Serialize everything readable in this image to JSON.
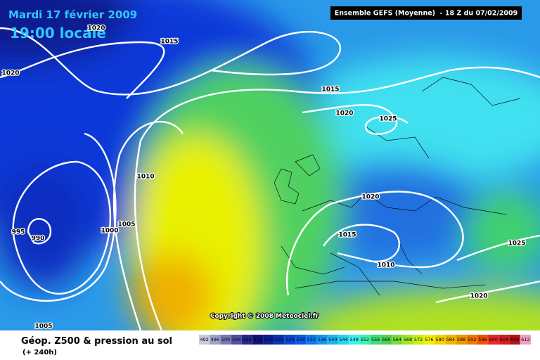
{
  "header": {
    "date": "Mardi 17 février 2009",
    "time": "19:00 locale",
    "run": "Ensemble GEFS (Moyenne)  - 18 Z du 07/02/2009"
  },
  "isobars": [
    "1020",
    "1015",
    "1020",
    "1015",
    "1020",
    "1025",
    "1010",
    "1020",
    "995",
    "990",
    "1000",
    "1005",
    "1015",
    "1010",
    "1025",
    "1020",
    "1005"
  ],
  "copyright": "Copyright © 2008 Meteociel.fr",
  "footer": {
    "title": "Géop. Z500 & pression au sol",
    "lead": "(+ 240h)"
  },
  "legend": {
    "values": [
      492,
      496,
      500,
      504,
      508,
      512,
      516,
      520,
      524,
      528,
      532,
      536,
      540,
      544,
      548,
      552,
      556,
      560,
      564,
      568,
      572,
      576,
      580,
      584,
      588,
      592,
      596,
      600,
      604,
      608,
      612
    ],
    "colors": [
      "#c8c8dc",
      "#a0a0c8",
      "#7878b4",
      "#5050a0",
      "#28288c",
      "#101478",
      "#0a1e96",
      "#0a32b4",
      "#0a46d2",
      "#0a5ae6",
      "#0a78f0",
      "#1496f0",
      "#1eb4f0",
      "#28d2f0",
      "#3cf0f0",
      "#3cf0b4",
      "#3cdc78",
      "#50d050",
      "#78dc3c",
      "#a0e628",
      "#c8f014",
      "#f0f000",
      "#f0d200",
      "#f0b400",
      "#f09600",
      "#f07800",
      "#f05000",
      "#e62828",
      "#d21e1e",
      "#b41414",
      "#f0a0c8"
    ]
  }
}
